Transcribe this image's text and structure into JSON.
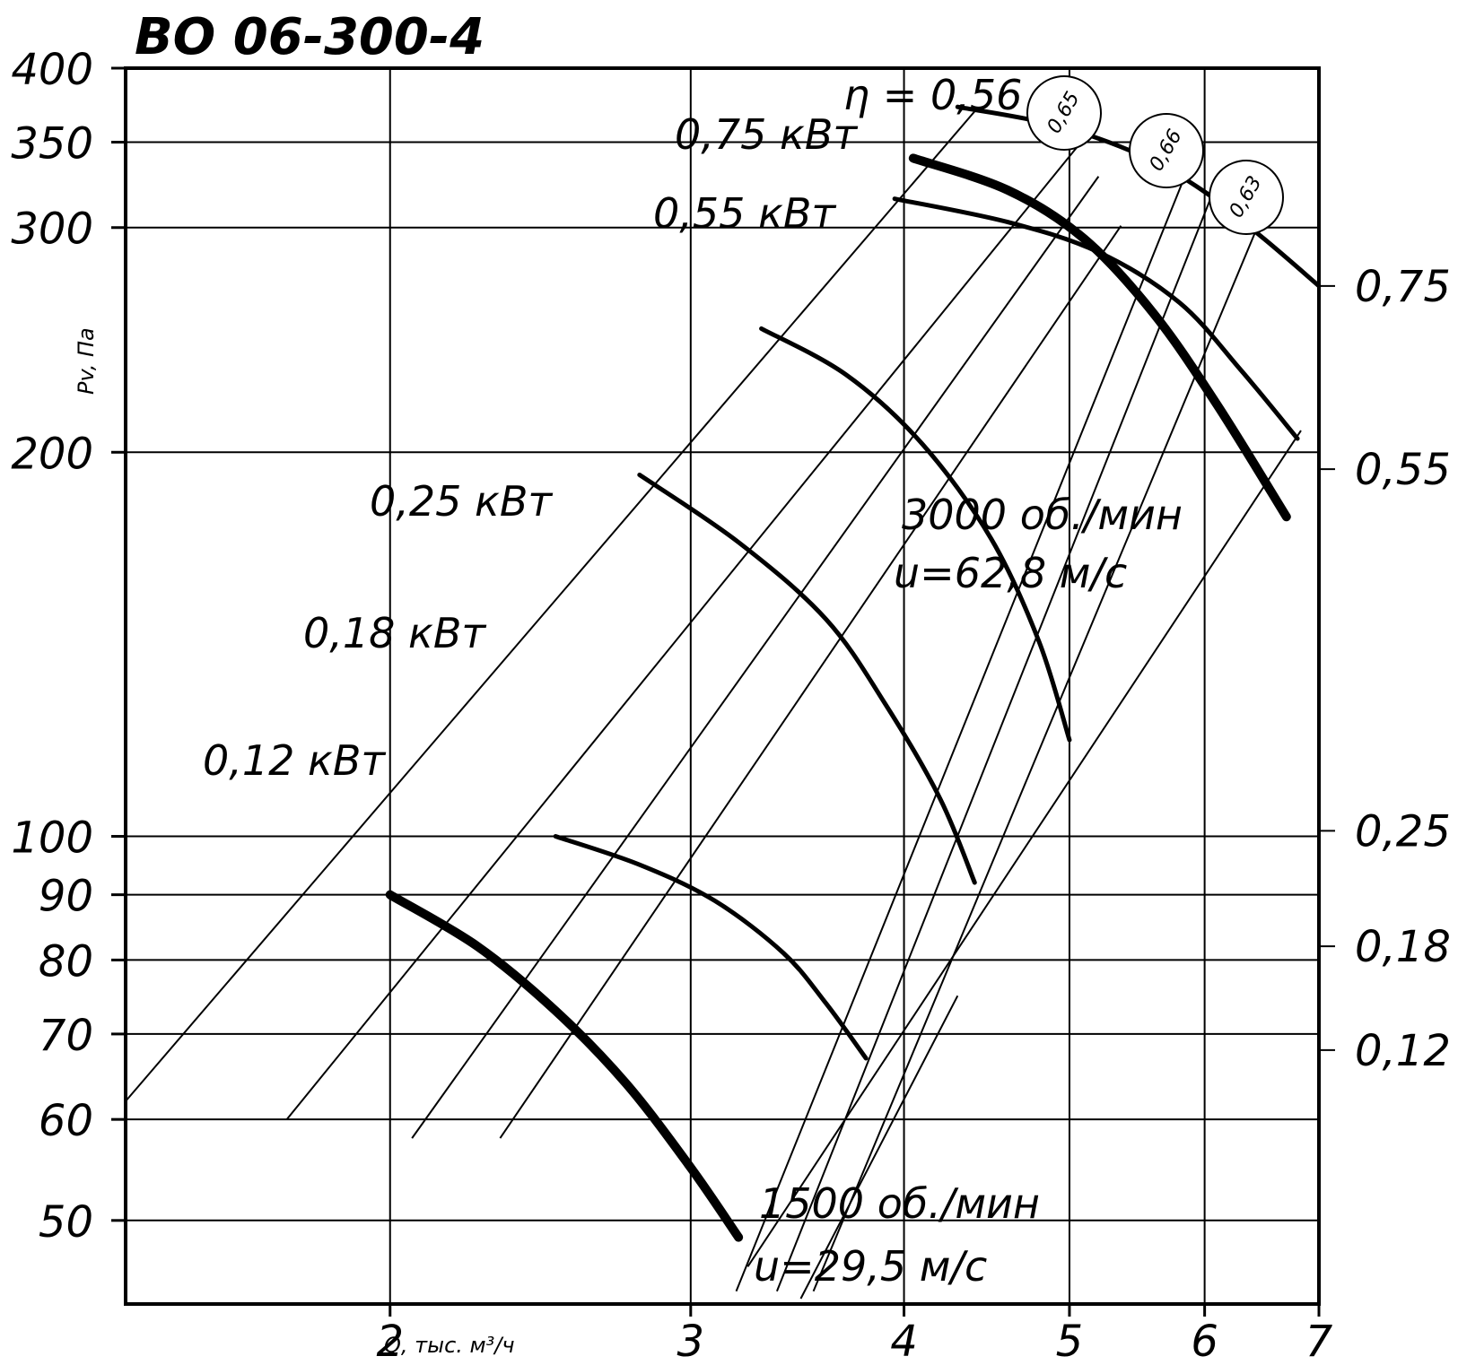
{
  "chart_data": {
    "type": "line",
    "title": "ВО 06-300-4",
    "xlabel": "Q, тыс. м³/ч",
    "ylabel": "Pv, Па",
    "x_scale": "log",
    "y_scale": "log",
    "xlim": [
      1.4,
      7
    ],
    "ylim": [
      43,
      400
    ],
    "x_ticks": [
      {
        "value": 2,
        "label": "2"
      },
      {
        "value": 3,
        "label": "3"
      },
      {
        "value": 4,
        "label": "4"
      },
      {
        "value": 5,
        "label": "5"
      },
      {
        "value": 6,
        "label": "6"
      },
      {
        "value": 7,
        "label": "7"
      }
    ],
    "y_ticks": [
      {
        "value": 400,
        "label": "400"
      },
      {
        "value": 350,
        "label": "350"
      },
      {
        "value": 300,
        "label": "300"
      },
      {
        "value": 200,
        "label": "200"
      },
      {
        "value": 100,
        "label": "100"
      },
      {
        "value": 90,
        "label": "90"
      },
      {
        "value": 80,
        "label": "80"
      },
      {
        "value": 70,
        "label": "70"
      },
      {
        "value": 60,
        "label": "60"
      },
      {
        "value": 50,
        "label": "50"
      }
    ],
    "gridlines_y": [
      350,
      300,
      200,
      100,
      90,
      80,
      70,
      60,
      50
    ],
    "gridlines_x": [
      2,
      3,
      4,
      5,
      6
    ],
    "series": [
      {
        "name": "1500 об./мин",
        "weight": "bold",
        "x": [
          2.0,
          2.25,
          2.5,
          2.75,
          3.0,
          3.2
        ],
        "y": [
          90,
          82,
          73,
          64,
          55,
          48.5
        ]
      },
      {
        "name": "0,12 кВт",
        "weight": "normal",
        "x": [
          2.5,
          2.8,
          3.1,
          3.4,
          3.6,
          3.8
        ],
        "y": [
          100,
          95,
          89,
          81,
          74,
          67
        ]
      },
      {
        "name": "0,18 кВт",
        "weight": "normal",
        "x": [
          2.8,
          3.2,
          3.6,
          3.9,
          4.2,
          4.4
        ],
        "y": [
          192,
          170,
          148,
          127,
          107,
          92
        ]
      },
      {
        "name": "0,25 кВт",
        "weight": "normal",
        "x": [
          3.3,
          3.7,
          4.1,
          4.5,
          4.8,
          5.0
        ],
        "y": [
          250,
          230,
          203,
          171,
          142,
          119
        ]
      },
      {
        "name": "3000 об./мин",
        "weight": "bold",
        "x": [
          4.05,
          4.6,
          5.1,
          5.6,
          6.1,
          6.7
        ],
        "y": [
          340,
          321,
          294,
          257,
          218,
          178
        ]
      },
      {
        "name": "0,55 кВт",
        "weight": "normal",
        "x": [
          3.95,
          4.6,
          5.2,
          5.8,
          6.3,
          6.8
        ],
        "y": [
          316,
          303,
          287,
          262,
          232,
          205
        ]
      },
      {
        "name": "0,75 кВт",
        "weight": "normal",
        "x": [
          4.3,
          4.9,
          5.5,
          6.0,
          6.5,
          7.0
        ],
        "y": [
          373,
          361,
          342,
          320,
          294,
          270
        ]
      }
    ],
    "efficiency_lines": [
      {
        "label": "η = 0,56",
        "x": [
          1.4,
          4.4
        ],
        "y": [
          62,
          370
        ]
      },
      {
        "label": "0,65",
        "x": [
          3.19,
          5.91
        ],
        "y": [
          44,
          342
        ]
      },
      {
        "label": "0,66",
        "x": [
          3.37,
          6.12
        ],
        "y": [
          44,
          329
        ]
      },
      {
        "label": "0,63",
        "x": [
          3.54,
          6.42
        ],
        "y": [
          44,
          297
        ]
      }
    ],
    "extra_lines": [
      {
        "x": [
          1.74,
          5.07
        ],
        "y": [
          60,
          349
        ]
      },
      {
        "x": [
          2.06,
          5.2
        ],
        "y": [
          58,
          329
        ]
      },
      {
        "x": [
          2.32,
          5.36
        ],
        "y": [
          58,
          301
        ]
      },
      {
        "x": [
          3.24,
          6.9
        ],
        "y": [
          46,
          208
        ]
      },
      {
        "x": [
          3.48,
          4.3
        ],
        "y": [
          43,
          75
        ]
      }
    ],
    "power_scale": {
      "label_x": 7.0,
      "ticks": [
        {
          "value": 0.75,
          "label": "0,75",
          "y": 270
        },
        {
          "value": 0.55,
          "label": "0,55",
          "y": 194
        },
        {
          "value": 0.25,
          "label": "0,25",
          "y": 101
        },
        {
          "value": 0.18,
          "label": "0,18",
          "y": 82
        },
        {
          "value": 0.12,
          "label": "0,12",
          "y": 68
        }
      ]
    },
    "annotations": {
      "power_labels": [
        "0,75 кВт",
        "0,55 кВт",
        "0,25 кВт",
        "0,18 кВт",
        "0,12 кВт"
      ],
      "eta_main": "η = 0,56",
      "eta_circles": [
        "0,65",
        "0,66",
        "0,63"
      ],
      "speed_high": "3000 об./мин",
      "u_high": "u=62,8 м/с",
      "speed_low": "1500 об./мин",
      "u_low": "u=29,5 м/с"
    },
    "grid": true,
    "legend": "none"
  }
}
